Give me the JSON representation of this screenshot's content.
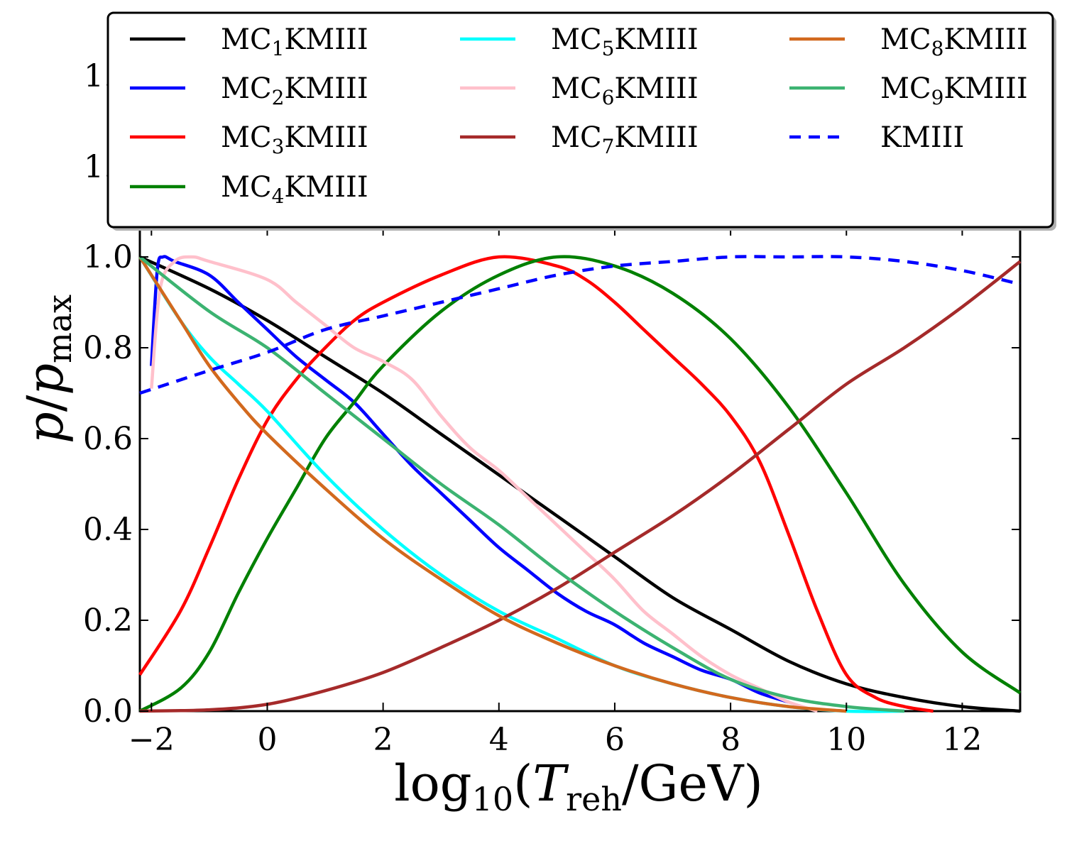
{
  "chart_data": {
    "type": "line",
    "title": "",
    "xlabel": "log10(Treh/GeV)",
    "xlabel_parts": {
      "base": "log",
      "sub": "10",
      "open": "(",
      "var": "T",
      "var_sub": "reh",
      "rest": "/GeV)"
    },
    "ylabel": "p/pmax",
    "ylabel_parts": {
      "num": "p",
      "slash": "/",
      "den": "p",
      "den_sub": "max"
    },
    "xlim": [
      -2.2,
      13
    ],
    "ylim": [
      0,
      1.05
    ],
    "xticks": [
      -2,
      0,
      2,
      4,
      6,
      8,
      10,
      12
    ],
    "xtick_labels": [
      "−2",
      "0",
      "2",
      "4",
      "6",
      "8",
      "10",
      "12"
    ],
    "yticks": [
      0.0,
      0.2,
      0.4,
      0.6,
      0.8,
      1.0
    ],
    "ytick_labels": [
      "0.0",
      "0.2",
      "0.4",
      "0.6",
      "0.8",
      "1.0"
    ],
    "hidden_tick_fragments": [
      "1.",
      "1."
    ],
    "legend_position": "top",
    "legend_columns": 3,
    "series": [
      {
        "name": "MC1KMIII",
        "prefix": "MC",
        "sub": "1",
        "suffix": "KMIII",
        "color": "#000000",
        "dash": "solid",
        "x": [
          -2.2,
          -1,
          0,
          1,
          2,
          3,
          4,
          5,
          6,
          7,
          8,
          9,
          10,
          11,
          12,
          13
        ],
        "y": [
          1.0,
          0.93,
          0.86,
          0.78,
          0.7,
          0.61,
          0.52,
          0.43,
          0.34,
          0.25,
          0.18,
          0.11,
          0.06,
          0.03,
          0.01,
          0.0
        ]
      },
      {
        "name": "MC2KMIII",
        "prefix": "MC",
        "sub": "2",
        "suffix": "KMIII",
        "color": "#0000ff",
        "dash": "solid",
        "x": [
          -2.0,
          -1.9,
          -1.8,
          -1.6,
          -1.0,
          -0.5,
          0,
          0.5,
          1,
          1.5,
          2,
          2.5,
          3,
          3.5,
          4,
          4.5,
          5,
          5.5,
          6,
          6.5,
          7,
          7.5,
          8,
          8.5,
          9
        ],
        "y": [
          0.76,
          0.97,
          1.0,
          0.99,
          0.96,
          0.9,
          0.84,
          0.78,
          0.73,
          0.68,
          0.61,
          0.54,
          0.48,
          0.42,
          0.36,
          0.31,
          0.26,
          0.22,
          0.19,
          0.15,
          0.12,
          0.09,
          0.07,
          0.04,
          0.02
        ]
      },
      {
        "name": "MC3KMIII",
        "prefix": "MC",
        "sub": "3",
        "suffix": "KMIII",
        "color": "#ff0000",
        "dash": "solid",
        "x": [
          -2.2,
          -1.5,
          -1,
          -0.5,
          0,
          0.5,
          1,
          1.5,
          2,
          3,
          4,
          5,
          5.5,
          6,
          6.5,
          7,
          7.5,
          8,
          8.5,
          9,
          9.5,
          10,
          10.5,
          11,
          11.5
        ],
        "y": [
          0.08,
          0.22,
          0.36,
          0.51,
          0.64,
          0.73,
          0.8,
          0.86,
          0.9,
          0.96,
          1.0,
          0.98,
          0.95,
          0.9,
          0.84,
          0.78,
          0.72,
          0.65,
          0.55,
          0.39,
          0.22,
          0.08,
          0.03,
          0.01,
          0.0
        ]
      },
      {
        "name": "MC4KMIII",
        "prefix": "MC",
        "sub": "4",
        "suffix": "KMIII",
        "color": "#008000",
        "dash": "solid",
        "x": [
          -2.2,
          -1.5,
          -1,
          -0.5,
          0,
          0.5,
          1,
          1.5,
          2,
          3,
          4,
          5,
          6,
          7,
          8,
          9,
          10,
          11,
          12,
          13
        ],
        "y": [
          0.0,
          0.05,
          0.13,
          0.26,
          0.38,
          0.49,
          0.6,
          0.68,
          0.76,
          0.88,
          0.96,
          1.0,
          0.98,
          0.92,
          0.82,
          0.67,
          0.48,
          0.28,
          0.13,
          0.04
        ]
      },
      {
        "name": "MC5KMIII",
        "prefix": "MC",
        "sub": "5",
        "suffix": "KMIII",
        "color": "#00ffff",
        "dash": "solid",
        "x": [
          -2.2,
          -1.5,
          -1,
          -0.5,
          0,
          1,
          2,
          3,
          4,
          5,
          6,
          7,
          8,
          9,
          10,
          11
        ],
        "y": [
          1.0,
          0.86,
          0.78,
          0.72,
          0.66,
          0.52,
          0.4,
          0.3,
          0.22,
          0.16,
          0.1,
          0.06,
          0.03,
          0.01,
          0.0,
          0.0
        ]
      },
      {
        "name": "MC6KMIII",
        "prefix": "MC",
        "sub": "6",
        "suffix": "KMIII",
        "color": "#ffc0cb",
        "dash": "solid",
        "x": [
          -2.0,
          -1.85,
          -1.6,
          -1.3,
          -1.0,
          0,
          0.5,
          1,
          1.5,
          2,
          2.5,
          3,
          3.5,
          4,
          4.5,
          5,
          5.5,
          6,
          6.5,
          7,
          7.5,
          8,
          8.5,
          9,
          9.5
        ],
        "y": [
          0.71,
          0.93,
          0.99,
          1.0,
          0.99,
          0.95,
          0.9,
          0.85,
          0.8,
          0.77,
          0.73,
          0.65,
          0.58,
          0.53,
          0.47,
          0.41,
          0.35,
          0.29,
          0.22,
          0.17,
          0.12,
          0.08,
          0.05,
          0.02,
          0.0
        ]
      },
      {
        "name": "MC7KMIII",
        "prefix": "MC",
        "sub": "7",
        "suffix": "KMIII",
        "color": "#a52a2a",
        "dash": "solid",
        "x": [
          -2.2,
          -1,
          0,
          1,
          2,
          3,
          4,
          5,
          6,
          7,
          8,
          9,
          10,
          11,
          12,
          13
        ],
        "y": [
          0.0,
          0.003,
          0.015,
          0.045,
          0.085,
          0.14,
          0.2,
          0.27,
          0.35,
          0.43,
          0.52,
          0.62,
          0.72,
          0.8,
          0.89,
          0.99
        ]
      },
      {
        "name": "MC8KMIII",
        "prefix": "MC",
        "sub": "8",
        "suffix": "KMIII",
        "color": "#d2691e",
        "dash": "solid",
        "x": [
          -2.2,
          -1.5,
          -1,
          -0.5,
          0,
          1,
          2,
          3,
          4,
          5,
          6,
          7,
          8,
          9,
          10
        ],
        "y": [
          1.0,
          0.86,
          0.76,
          0.68,
          0.61,
          0.49,
          0.38,
          0.29,
          0.21,
          0.15,
          0.1,
          0.06,
          0.03,
          0.01,
          0.0
        ]
      },
      {
        "name": "MC9KMIII",
        "prefix": "MC",
        "sub": "9",
        "suffix": "KMIII",
        "color": "#3cb371",
        "dash": "solid",
        "x": [
          -2.2,
          -1,
          0,
          1,
          2,
          3,
          4,
          5,
          6,
          7,
          8,
          9,
          10,
          11
        ],
        "y": [
          1.0,
          0.88,
          0.8,
          0.7,
          0.6,
          0.5,
          0.41,
          0.31,
          0.22,
          0.14,
          0.07,
          0.03,
          0.01,
          0.0
        ]
      },
      {
        "name": "KMIII",
        "prefix": "KMIII",
        "sub": "",
        "suffix": "",
        "color": "#0000ff",
        "dash": "dashed",
        "x": [
          -2.2,
          -1,
          0,
          1,
          2,
          3,
          4,
          5,
          6,
          7,
          8,
          9,
          10,
          11,
          12,
          13
        ],
        "y": [
          0.7,
          0.75,
          0.79,
          0.84,
          0.87,
          0.9,
          0.93,
          0.96,
          0.98,
          0.99,
          1.0,
          1.0,
          1.0,
          0.99,
          0.97,
          0.94
        ]
      }
    ]
  }
}
